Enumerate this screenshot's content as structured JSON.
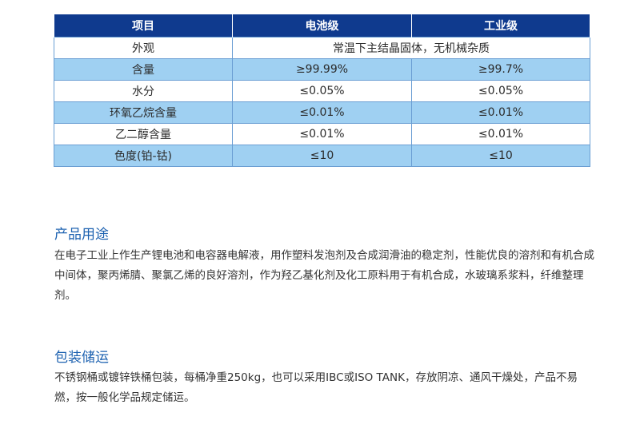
{
  "table": {
    "headers": [
      "项目",
      "电池级",
      "工业级"
    ],
    "rows": [
      {
        "item": "外观",
        "merged": "常温下主结晶固体，无机械杂质"
      },
      {
        "item": "含量",
        "battery": "≥99.99%",
        "industrial": "≥99.7%"
      },
      {
        "item": "水分",
        "battery": "≤0.05%",
        "industrial": "≤0.05%"
      },
      {
        "item": "环氧乙烷含量",
        "battery": "≤0.01%",
        "industrial": "≤0.01%"
      },
      {
        "item": "乙二醇含量",
        "battery": "≤0.01%",
        "industrial": "≤0.01%"
      },
      {
        "item": "色度(铂-钴)",
        "battery": "≤10",
        "industrial": "≤10"
      }
    ]
  },
  "usage": {
    "title": "产品用途",
    "text": "在电子工业上作生产锂电池和电容器电解液，用作塑料发泡剂及合成润滑油的稳定剂，性能优良的溶剂和有机合成中间体，聚丙烯腈、聚氯乙烯的良好溶剂，作为羟乙基化剂及化工原料用于有机合成，水玻璃系浆料，纤维整理剂。"
  },
  "packaging": {
    "title": "包装储运",
    "text": "不锈钢桶或镀锌铁桶包装，每桶净重250kg，也可以采用IBC或ISO TANK，存放阴凉、通风干燥处，产品不易燃，按一般化学品规定储运。"
  },
  "colors": {
    "header_bg": "#0f3a8e",
    "alt_row_bg": "#9fd0f2",
    "section_title": "#1c61b0"
  }
}
